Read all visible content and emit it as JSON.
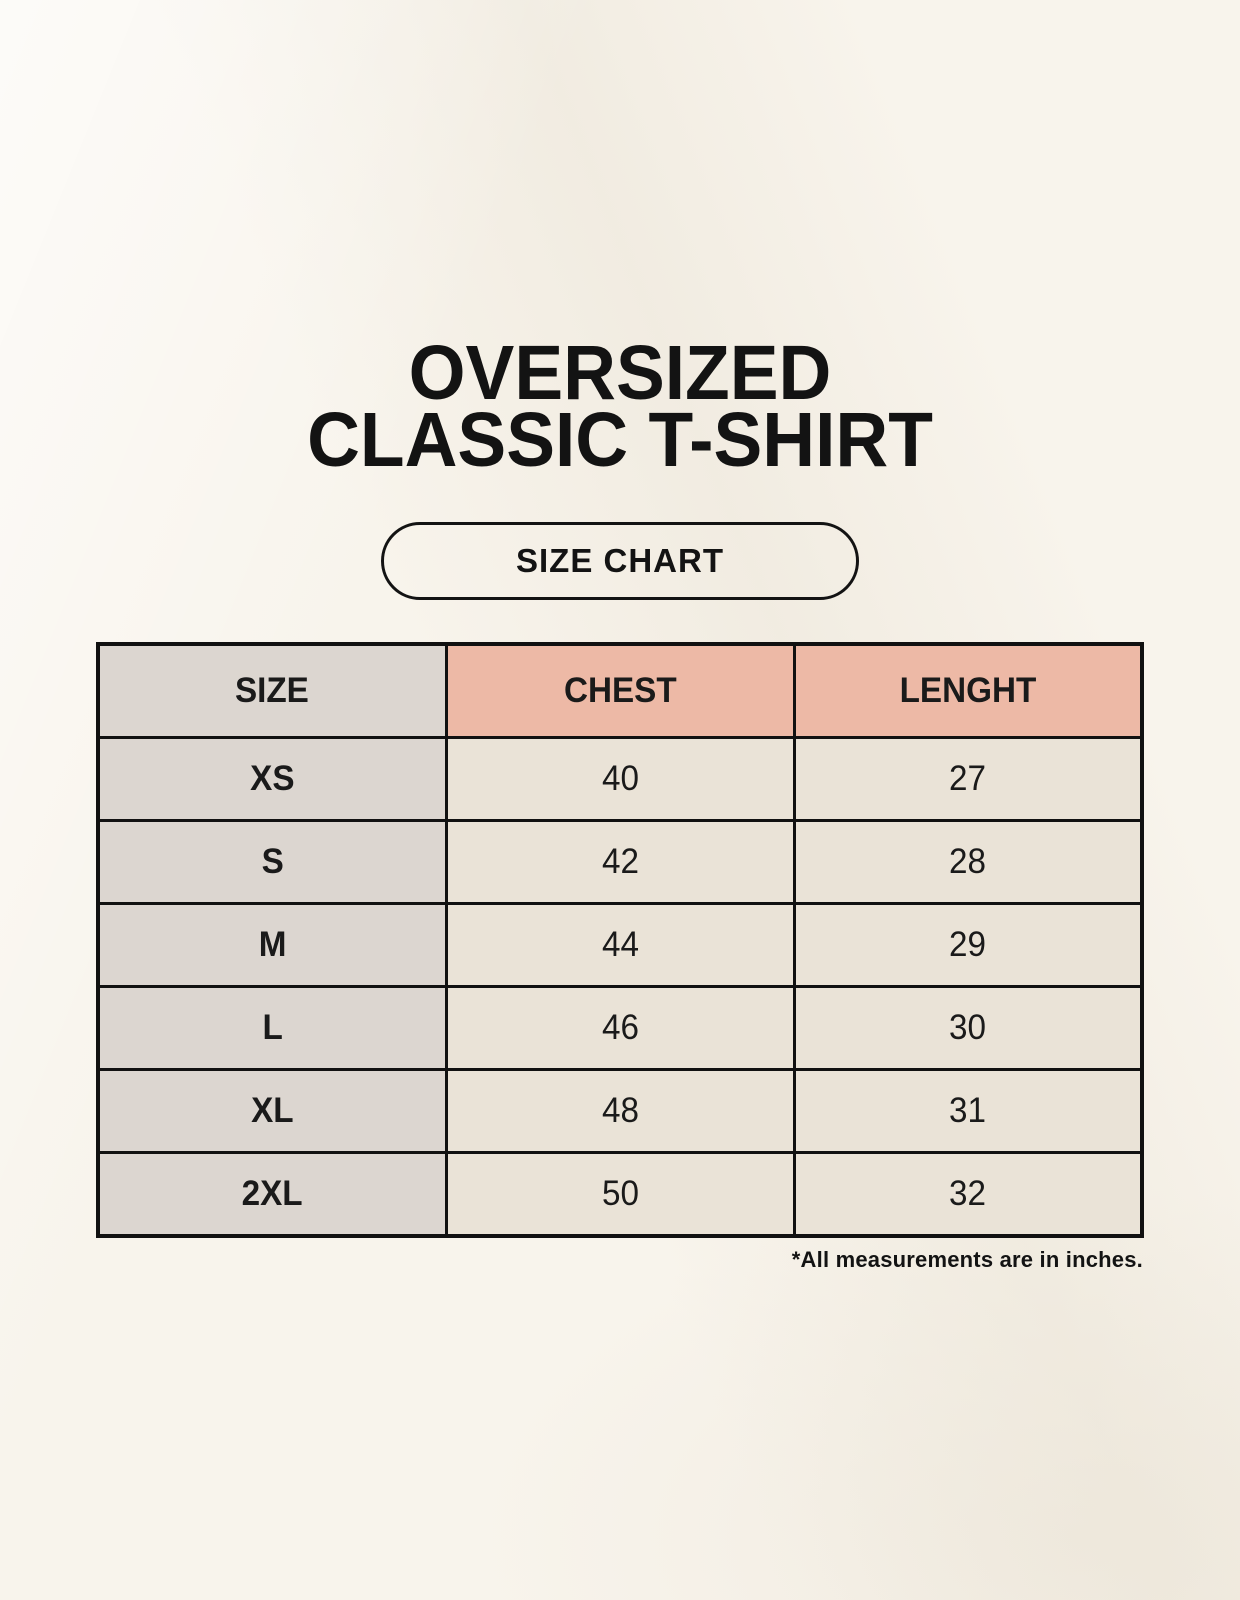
{
  "page": {
    "title_line1": "OVERSIZED",
    "title_line2": "CLASSIC T-SHIRT",
    "size_chart_label": "SIZE CHART"
  },
  "colors": {
    "background": "#f8f4ec",
    "header_salmon": "#edb9a6",
    "size_column_gray": "#dcd6d0",
    "data_cell_beige": "#eae3d7",
    "table_border": "#111111",
    "text": "#141414"
  },
  "chart_data": {
    "type": "table",
    "title": "OVERSIZED CLASSIC T-SHIRT",
    "subtitle": "SIZE CHART",
    "columns": [
      "SIZE",
      "CHEST",
      "LENGHT"
    ],
    "rows": [
      [
        "XS",
        40,
        27
      ],
      [
        "S",
        42,
        28
      ],
      [
        "M",
        44,
        29
      ],
      [
        "L",
        46,
        30
      ],
      [
        "XL",
        48,
        31
      ],
      [
        "2XL",
        50,
        32
      ]
    ],
    "note": "*All measurements are in inches."
  }
}
